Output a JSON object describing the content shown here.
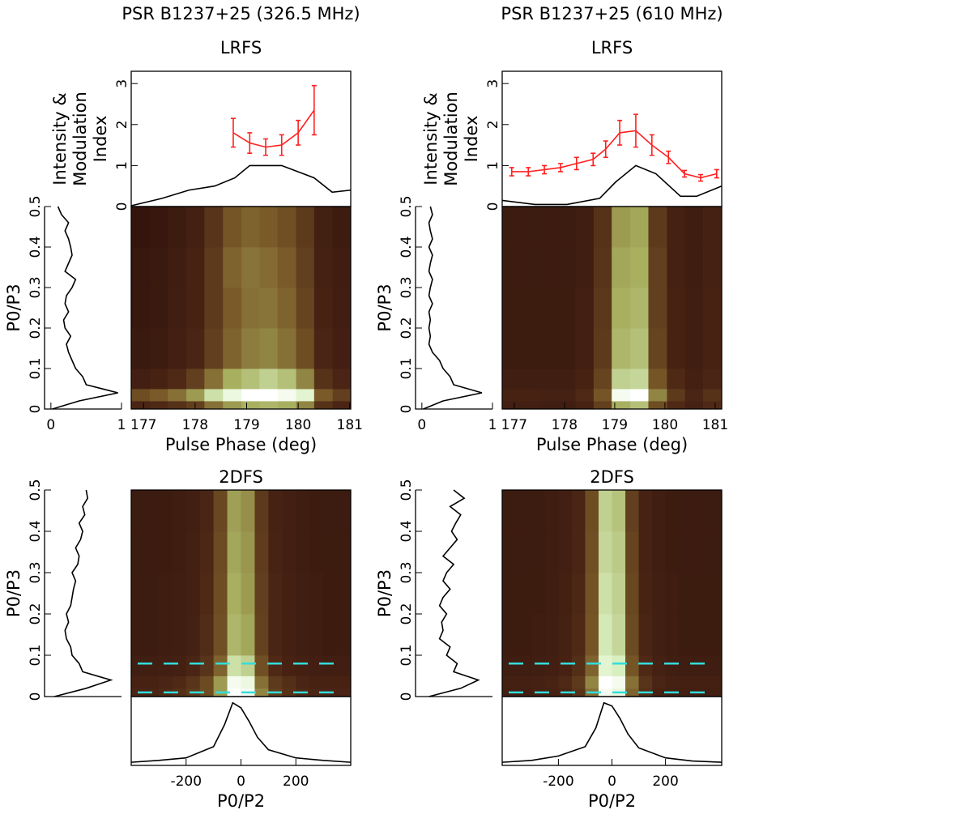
{
  "chart_data": [
    {
      "type": "profile",
      "title": "PSR B1237+25 (326.5 MHz)",
      "subtitle": "LRFS",
      "ylabel": [
        "Intensity &",
        "Modulation",
        "Index"
      ],
      "xlim": [
        176.76,
        181.02
      ],
      "ylim": [
        0,
        3.3
      ],
      "yticks": [
        0,
        1,
        2,
        3
      ],
      "series": [
        {
          "color": "#000000",
          "x": [
            176.76,
            177.36,
            177.88,
            178.38,
            178.77,
            179.06,
            179.68,
            180.31,
            180.66,
            181.02
          ],
          "values": [
            0.02,
            0.2,
            0.4,
            0.5,
            0.7,
            1.0,
            1.0,
            0.7,
            0.35,
            0.4
          ]
        },
        {
          "color": "#ff2020",
          "x": [
            178.74,
            179.06,
            179.37,
            179.68,
            180.0,
            180.31
          ],
          "values": [
            1.8,
            1.55,
            1.45,
            1.5,
            1.8,
            2.35
          ],
          "errors": [
            0.35,
            0.25,
            0.2,
            0.25,
            0.3,
            0.6
          ]
        }
      ]
    },
    {
      "type": "spectrum",
      "ylabel": "P0/P3",
      "xlim": [
        -0.09,
        1
      ],
      "xticks": [
        0,
        1
      ],
      "ylim": [
        0,
        0.5
      ],
      "yticks": [
        0,
        0.1,
        0.2,
        0.3,
        0.4,
        0.5
      ],
      "color": "#000000",
      "freqs": [
        0,
        0.02,
        0.04,
        0.06,
        0.08,
        0.1,
        0.12,
        0.14,
        0.16,
        0.18,
        0.2,
        0.22,
        0.24,
        0.26,
        0.28,
        0.3,
        0.32,
        0.34,
        0.36,
        0.38,
        0.4,
        0.42,
        0.44,
        0.46,
        0.48,
        0.5
      ],
      "values": [
        0.02,
        0.4,
        0.95,
        0.5,
        0.45,
        0.35,
        0.3,
        0.25,
        0.22,
        0.28,
        0.2,
        0.18,
        0.25,
        0.2,
        0.22,
        0.3,
        0.35,
        0.2,
        0.25,
        0.3,
        0.28,
        0.25,
        0.2,
        0.25,
        0.15,
        0.1
      ]
    },
    {
      "type": "heatmap",
      "xlabel": "Pulse Phase (deg)",
      "xlim": [
        176.76,
        181.02
      ],
      "xticks": [
        177,
        178,
        179,
        180,
        181
      ],
      "ylim": [
        0,
        0.5
      ],
      "colormap": [
        "#2a0f0a",
        "#4a2414",
        "#7a5a28",
        "#a8b060",
        "#d8f0c0",
        "#ffffff"
      ],
      "xbins": [
        176.76,
        177.12,
        177.47,
        177.83,
        178.18,
        178.54,
        178.9,
        179.25,
        179.6,
        179.96,
        180.31,
        180.67,
        181.02
      ],
      "ybins": [
        0,
        0.02,
        0.05,
        0.1,
        0.2,
        0.3,
        0.4,
        0.5
      ],
      "z": [
        [
          0.2,
          0.22,
          0.25,
          0.3,
          0.45,
          0.55,
          0.6,
          0.62,
          0.6,
          0.5,
          0.25,
          0.2
        ],
        [
          0.35,
          0.4,
          0.45,
          0.55,
          0.75,
          0.9,
          1,
          1,
          0.95,
          0.85,
          0.4,
          0.3
        ],
        [
          0.15,
          0.18,
          0.22,
          0.3,
          0.45,
          0.6,
          0.65,
          0.7,
          0.65,
          0.5,
          0.25,
          0.2
        ],
        [
          0.1,
          0.12,
          0.15,
          0.2,
          0.3,
          0.42,
          0.48,
          0.5,
          0.45,
          0.35,
          0.2,
          0.15
        ],
        [
          0.08,
          0.1,
          0.14,
          0.18,
          0.28,
          0.4,
          0.45,
          0.46,
          0.42,
          0.32,
          0.18,
          0.14
        ],
        [
          0.08,
          0.1,
          0.13,
          0.18,
          0.28,
          0.42,
          0.46,
          0.44,
          0.4,
          0.3,
          0.17,
          0.13
        ],
        [
          0.06,
          0.08,
          0.12,
          0.16,
          0.26,
          0.38,
          0.42,
          0.4,
          0.36,
          0.28,
          0.16,
          0.12
        ]
      ]
    },
    {
      "type": "spectrum",
      "ylabel": "P0/P3",
      "xlim": [
        -0.09,
        1
      ],
      "ylim": [
        0,
        0.5
      ],
      "yticks": [
        0,
        0.1,
        0.2,
        0.3,
        0.4,
        0.5
      ],
      "color": "#000000",
      "freqs": [
        0,
        0.02,
        0.04,
        0.06,
        0.08,
        0.1,
        0.12,
        0.14,
        0.16,
        0.18,
        0.2,
        0.22,
        0.24,
        0.26,
        0.28,
        0.3,
        0.32,
        0.34,
        0.36,
        0.38,
        0.4,
        0.42,
        0.44,
        0.46,
        0.48,
        0.5
      ],
      "values": [
        0.05,
        0.5,
        0.85,
        0.45,
        0.4,
        0.3,
        0.28,
        0.22,
        0.2,
        0.25,
        0.22,
        0.28,
        0.3,
        0.32,
        0.35,
        0.3,
        0.38,
        0.4,
        0.35,
        0.42,
        0.45,
        0.4,
        0.48,
        0.45,
        0.52,
        0.5
      ]
    },
    {
      "type": "heatmap",
      "title": "2DFS",
      "xlim": [
        -400,
        400
      ],
      "ylim": [
        0,
        0.5
      ],
      "hlines": [
        0.08,
        0.01
      ],
      "hline_color": "#33dddd",
      "colormap": [
        "#2a0f0a",
        "#4a2414",
        "#7a5a28",
        "#a8b060",
        "#d8f0c0",
        "#ffffff"
      ],
      "xbins": [
        -400,
        -350,
        -300,
        -250,
        -200,
        -150,
        -100,
        -50,
        0,
        50,
        100,
        150,
        200,
        250,
        300,
        350,
        400
      ],
      "ybins": [
        0,
        0.02,
        0.05,
        0.1,
        0.2,
        0.3,
        0.4,
        0.5
      ],
      "z": [
        [
          0.2,
          0.2,
          0.22,
          0.24,
          0.28,
          0.35,
          0.55,
          1,
          0.95,
          0.5,
          0.3,
          0.25,
          0.22,
          0.2,
          0.2,
          0.2
        ],
        [
          0.18,
          0.18,
          0.2,
          0.22,
          0.26,
          0.34,
          0.55,
          0.95,
          0.9,
          0.45,
          0.28,
          0.24,
          0.2,
          0.18,
          0.18,
          0.18
        ],
        [
          0.14,
          0.14,
          0.15,
          0.16,
          0.2,
          0.26,
          0.42,
          0.75,
          0.7,
          0.36,
          0.22,
          0.18,
          0.16,
          0.15,
          0.14,
          0.14
        ],
        [
          0.12,
          0.12,
          0.13,
          0.14,
          0.17,
          0.23,
          0.36,
          0.62,
          0.58,
          0.31,
          0.2,
          0.16,
          0.14,
          0.13,
          0.12,
          0.12
        ],
        [
          0.12,
          0.12,
          0.13,
          0.14,
          0.16,
          0.22,
          0.35,
          0.6,
          0.55,
          0.3,
          0.2,
          0.16,
          0.14,
          0.13,
          0.12,
          0.12
        ],
        [
          0.11,
          0.12,
          0.12,
          0.13,
          0.16,
          0.21,
          0.34,
          0.58,
          0.54,
          0.29,
          0.19,
          0.15,
          0.13,
          0.12,
          0.12,
          0.11
        ],
        [
          0.11,
          0.11,
          0.12,
          0.13,
          0.15,
          0.2,
          0.33,
          0.56,
          0.52,
          0.28,
          0.18,
          0.15,
          0.13,
          0.12,
          0.11,
          0.11
        ]
      ]
    },
    {
      "type": "profile",
      "xlabel": "P0/P2",
      "xlim": [
        -400,
        400
      ],
      "xticks": [
        -200,
        0,
        200
      ],
      "ylim": [
        0,
        1.1
      ],
      "series": [
        {
          "color": "#000000",
          "x": [
            -400,
            -300,
            -200,
            -100,
            -60,
            -30,
            0,
            30,
            60,
            100,
            200,
            300,
            400
          ],
          "values": [
            0.05,
            0.08,
            0.12,
            0.3,
            0.65,
            1,
            0.92,
            0.7,
            0.45,
            0.25,
            0.12,
            0.08,
            0.05
          ]
        }
      ]
    },
    {
      "type": "profile",
      "title": "PSR B1237+25 (610 MHz)",
      "subtitle": "LRFS",
      "ylabel": [
        "Intensity &",
        "Modulation",
        "Index"
      ],
      "xlim": [
        176.76,
        181.13
      ],
      "ylim": [
        0,
        3.3
      ],
      "yticks": [
        0,
        1,
        2,
        3
      ],
      "series": [
        {
          "color": "#000000",
          "x": [
            176.76,
            177.41,
            178.05,
            178.7,
            179.02,
            179.42,
            179.82,
            180.31,
            180.63,
            181.13
          ],
          "values": [
            0.15,
            0.05,
            0.05,
            0.2,
            0.6,
            1.0,
            0.8,
            0.25,
            0.25,
            0.5
          ]
        },
        {
          "color": "#ff2020",
          "x": [
            176.95,
            177.28,
            177.6,
            177.92,
            178.24,
            178.57,
            178.82,
            179.1,
            179.42,
            179.74,
            180.07,
            180.39,
            180.71,
            181.03
          ],
          "values": [
            0.85,
            0.85,
            0.9,
            0.95,
            1.05,
            1.15,
            1.4,
            1.8,
            1.85,
            1.5,
            1.2,
            0.8,
            0.7,
            0.8
          ],
          "errors": [
            0.1,
            0.1,
            0.1,
            0.1,
            0.15,
            0.15,
            0.2,
            0.3,
            0.4,
            0.25,
            0.15,
            0.08,
            0.08,
            0.1
          ]
        }
      ]
    },
    {
      "type": "spectrum",
      "ylabel": "P0/P3",
      "xlim": [
        -0.09,
        1
      ],
      "xticks": [
        0,
        1
      ],
      "ylim": [
        0,
        0.5
      ],
      "yticks": [
        0,
        0.1,
        0.2,
        0.3,
        0.4,
        0.5
      ],
      "color": "#000000",
      "freqs": [
        0,
        0.02,
        0.04,
        0.06,
        0.08,
        0.1,
        0.12,
        0.14,
        0.16,
        0.18,
        0.2,
        0.22,
        0.24,
        0.26,
        0.28,
        0.3,
        0.32,
        0.34,
        0.36,
        0.38,
        0.4,
        0.42,
        0.44,
        0.46,
        0.48,
        0.5
      ],
      "values": [
        0.02,
        0.3,
        0.85,
        0.45,
        0.4,
        0.3,
        0.25,
        0.15,
        0.1,
        0.12,
        0.1,
        0.12,
        0.1,
        0.15,
        0.1,
        0.12,
        0.15,
        0.1,
        0.12,
        0.15,
        0.1,
        0.15,
        0.12,
        0.1,
        0.15,
        0.12
      ]
    },
    {
      "type": "heatmap",
      "xlabel": "Pulse Phase (deg)",
      "xlim": [
        176.76,
        181.13
      ],
      "xticks": [
        177,
        178,
        179,
        180,
        181
      ],
      "ylim": [
        0,
        0.5
      ],
      "colormap": [
        "#2a0f0a",
        "#4a2414",
        "#7a5a28",
        "#a8b060",
        "#d8f0c0",
        "#ffffff"
      ],
      "xbins": [
        176.76,
        177.12,
        177.49,
        177.85,
        178.22,
        178.58,
        178.94,
        179.31,
        179.67,
        180.04,
        180.4,
        180.76,
        181.13
      ],
      "ybins": [
        0,
        0.02,
        0.05,
        0.1,
        0.2,
        0.3,
        0.4,
        0.5
      ],
      "z": [
        [
          0.15,
          0.15,
          0.14,
          0.14,
          0.18,
          0.3,
          0.6,
          0.65,
          0.35,
          0.22,
          0.17,
          0.22
        ],
        [
          0.18,
          0.18,
          0.17,
          0.17,
          0.22,
          0.38,
          0.95,
          1,
          0.5,
          0.28,
          0.2,
          0.25
        ],
        [
          0.14,
          0.14,
          0.14,
          0.14,
          0.18,
          0.32,
          0.7,
          0.72,
          0.38,
          0.22,
          0.16,
          0.2
        ],
        [
          0.12,
          0.12,
          0.12,
          0.12,
          0.15,
          0.28,
          0.62,
          0.65,
          0.32,
          0.18,
          0.14,
          0.18
        ],
        [
          0.12,
          0.12,
          0.12,
          0.12,
          0.15,
          0.27,
          0.6,
          0.62,
          0.3,
          0.18,
          0.14,
          0.18
        ],
        [
          0.11,
          0.11,
          0.11,
          0.11,
          0.14,
          0.26,
          0.58,
          0.6,
          0.3,
          0.17,
          0.13,
          0.17
        ],
        [
          0.11,
          0.11,
          0.11,
          0.11,
          0.14,
          0.25,
          0.55,
          0.58,
          0.28,
          0.17,
          0.13,
          0.17
        ]
      ]
    },
    {
      "type": "spectrum",
      "ylabel": "P0/P3",
      "xlim": [
        -0.09,
        1
      ],
      "ylim": [
        0,
        0.5
      ],
      "yticks": [
        0,
        0.1,
        0.2,
        0.3,
        0.4,
        0.5
      ],
      "color": "#000000",
      "freqs": [
        0,
        0.02,
        0.04,
        0.06,
        0.08,
        0.1,
        0.12,
        0.14,
        0.16,
        0.18,
        0.2,
        0.22,
        0.24,
        0.26,
        0.28,
        0.3,
        0.32,
        0.34,
        0.36,
        0.38,
        0.4,
        0.42,
        0.44,
        0.46,
        0.48,
        0.5
      ],
      "values": [
        0.1,
        0.55,
        0.8,
        0.45,
        0.5,
        0.35,
        0.4,
        0.25,
        0.3,
        0.28,
        0.35,
        0.25,
        0.3,
        0.4,
        0.3,
        0.35,
        0.45,
        0.3,
        0.4,
        0.5,
        0.42,
        0.48,
        0.55,
        0.4,
        0.6,
        0.45
      ]
    },
    {
      "type": "heatmap",
      "title": "2DFS",
      "xlim": [
        -410,
        410
      ],
      "ylim": [
        0,
        0.5
      ],
      "hlines": [
        0.08,
        0.01
      ],
      "hline_color": "#33dddd",
      "colormap": [
        "#2a0f0a",
        "#4a2414",
        "#7a5a28",
        "#a8b060",
        "#d8f0c0",
        "#ffffff"
      ],
      "xbins": [
        -410,
        -350,
        -300,
        -250,
        -200,
        -150,
        -100,
        -50,
        0,
        50,
        100,
        150,
        200,
        250,
        300,
        350,
        410
      ],
      "ybins": [
        0,
        0.02,
        0.05,
        0.1,
        0.2,
        0.3,
        0.4,
        0.5
      ],
      "z": [
        [
          0.15,
          0.15,
          0.16,
          0.18,
          0.2,
          0.26,
          0.45,
          0.95,
          0.9,
          0.42,
          0.24,
          0.18,
          0.16,
          0.15,
          0.15,
          0.15
        ],
        [
          0.16,
          0.16,
          0.17,
          0.19,
          0.22,
          0.28,
          0.5,
          1,
          0.95,
          0.45,
          0.26,
          0.2,
          0.17,
          0.16,
          0.16,
          0.16
        ],
        [
          0.13,
          0.13,
          0.14,
          0.15,
          0.18,
          0.24,
          0.42,
          0.85,
          0.8,
          0.38,
          0.22,
          0.17,
          0.14,
          0.13,
          0.13,
          0.13
        ],
        [
          0.12,
          0.12,
          0.13,
          0.14,
          0.17,
          0.22,
          0.38,
          0.78,
          0.72,
          0.34,
          0.2,
          0.15,
          0.13,
          0.12,
          0.12,
          0.12
        ],
        [
          0.12,
          0.12,
          0.12,
          0.13,
          0.16,
          0.21,
          0.37,
          0.75,
          0.7,
          0.33,
          0.19,
          0.15,
          0.13,
          0.12,
          0.12,
          0.12
        ],
        [
          0.11,
          0.11,
          0.12,
          0.13,
          0.15,
          0.2,
          0.36,
          0.72,
          0.68,
          0.32,
          0.18,
          0.14,
          0.12,
          0.11,
          0.11,
          0.11
        ],
        [
          0.11,
          0.11,
          0.12,
          0.13,
          0.15,
          0.2,
          0.35,
          0.7,
          0.66,
          0.3,
          0.18,
          0.14,
          0.12,
          0.11,
          0.11,
          0.11
        ]
      ]
    },
    {
      "type": "profile",
      "xlabel": "P0/P2",
      "xlim": [
        -410,
        410
      ],
      "xticks": [
        -200,
        0,
        200
      ],
      "ylim": [
        0,
        1.1
      ],
      "series": [
        {
          "color": "#000000",
          "x": [
            -410,
            -300,
            -200,
            -100,
            -60,
            -30,
            0,
            30,
            60,
            100,
            200,
            300,
            410
          ],
          "values": [
            0.05,
            0.08,
            0.15,
            0.3,
            0.6,
            1,
            0.95,
            0.75,
            0.5,
            0.28,
            0.12,
            0.07,
            0.05
          ]
        }
      ]
    }
  ]
}
